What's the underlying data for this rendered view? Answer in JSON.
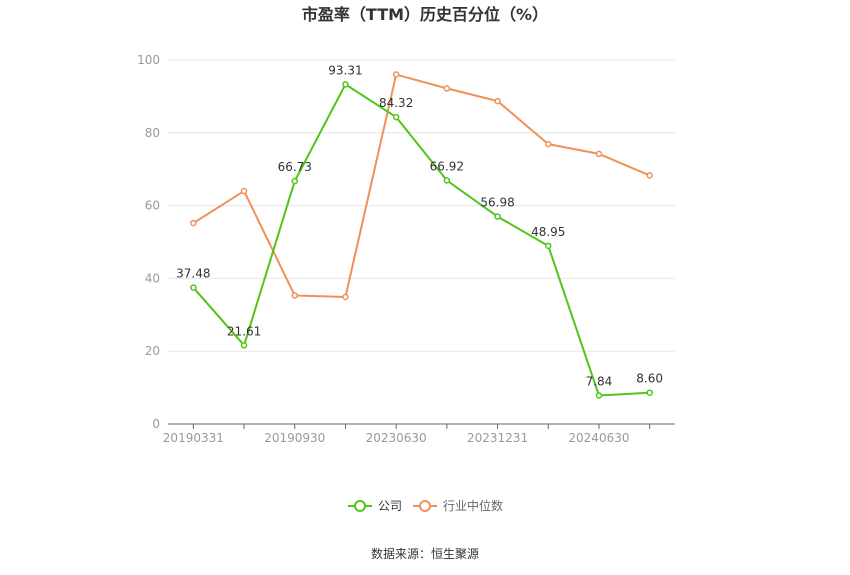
{
  "chart_data": {
    "type": "line",
    "title": "市盈率（TTM）历史百分位（%）",
    "xlabel": "",
    "ylabel": "",
    "ylim": [
      0,
      100
    ],
    "yticks": [
      0,
      20,
      40,
      60,
      80,
      100
    ],
    "categories": [
      "20190331",
      "",
      "20190930",
      "",
      "20230630",
      "",
      "20231231",
      "",
      "20240630",
      ""
    ],
    "x_tick_labels": [
      "20190331",
      "20190930",
      "20230630",
      "20231231",
      "20240630"
    ],
    "grid": true,
    "legend_position": "bottom-center",
    "series": [
      {
        "name": "公司",
        "color": "#52c41a",
        "values": [
          37.48,
          21.61,
          66.73,
          93.31,
          84.32,
          66.92,
          56.98,
          48.95,
          7.84,
          8.6
        ],
        "labels": [
          "37.48",
          "21.61",
          "66.73",
          "93.31",
          "84.32",
          "66.92",
          "56.98",
          "48.95",
          "7.84",
          "8.60"
        ]
      },
      {
        "name": "行业中位数",
        "color": "#f0905a",
        "values": [
          55.2,
          64.0,
          35.3,
          34.9,
          96.0,
          92.2,
          88.7,
          76.9,
          74.2,
          68.3
        ]
      }
    ]
  },
  "source": "数据来源：恒生聚源"
}
